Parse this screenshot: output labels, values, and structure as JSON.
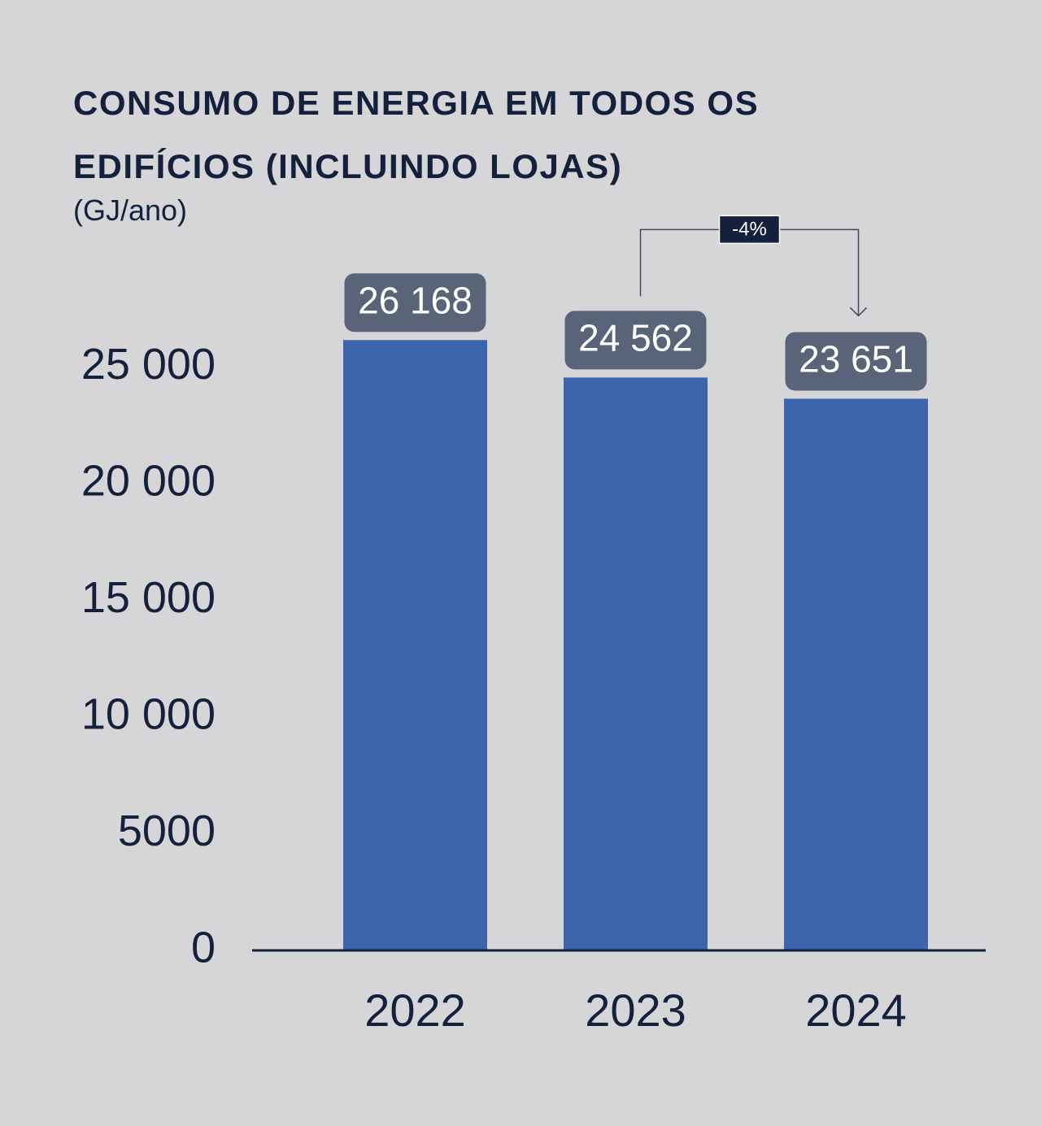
{
  "chart_data": {
    "type": "bar",
    "title": "CONSUMO DE ENERGIA EM TODOS OS EDIFÍCIOS (INCLUINDO LOJAS)",
    "subtitle": "(GJ/ano)",
    "categories": [
      "2022",
      "2023",
      "2024"
    ],
    "values": [
      26168,
      24562,
      23651
    ],
    "value_labels": [
      "26 168",
      "24 562",
      "23 651"
    ],
    "color": "#3d65ae",
    "ylim": [
      0,
      29000
    ],
    "yticks": [
      0,
      5000,
      {
        "value": 10000,
        "label": "10 000"
      },
      {
        "value": 15000,
        "label": "15 000"
      },
      {
        "value": 20000,
        "label": "20 000"
      },
      {
        "value": 25000,
        "label": "25 000"
      }
    ],
    "grid": false,
    "annotation": "-4%"
  }
}
